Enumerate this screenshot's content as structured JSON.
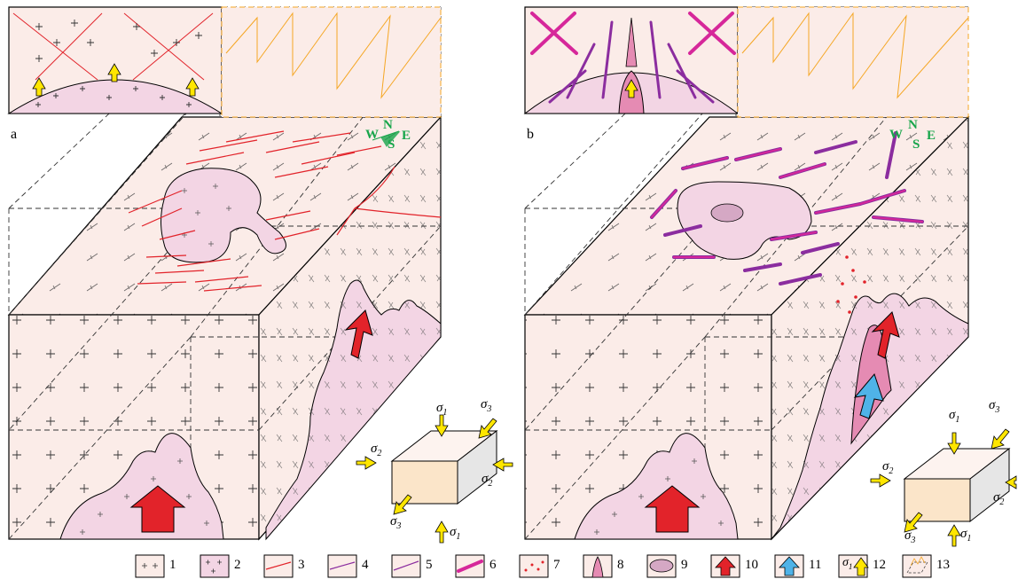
{
  "panels": [
    {
      "id": "a",
      "label": "a"
    },
    {
      "id": "b",
      "label": "b"
    }
  ],
  "compass": {
    "n": "N",
    "s": "S",
    "w": "W",
    "e": "E"
  },
  "stress": {
    "s1": "σ",
    "s1_sub": "1",
    "s2": "σ",
    "s2_sub": "2",
    "s3": "σ",
    "s3_sub": "3"
  },
  "legend": [
    {
      "num": "1",
      "icon": "granite-cross-icon"
    },
    {
      "num": "2",
      "icon": "intrusion-cross-icon"
    },
    {
      "num": "3",
      "icon": "red-fault-icon"
    },
    {
      "num": "4",
      "icon": "purple-fault-icon"
    },
    {
      "num": "5",
      "icon": "purple-line-icon"
    },
    {
      "num": "6",
      "icon": "magenta-vein-icon"
    },
    {
      "num": "7",
      "icon": "red-dots-icon"
    },
    {
      "num": "8",
      "icon": "pink-intrusion-icon"
    },
    {
      "num": "9",
      "icon": "breccia-ellipse-icon"
    },
    {
      "num": "10",
      "icon": "red-arrow-icon"
    },
    {
      "num": "11",
      "icon": "blue-arrow-icon"
    },
    {
      "num": "12",
      "icon": "yellow-arrow-icon",
      "text": "σ",
      "sub": "1"
    },
    {
      "num": "13",
      "icon": "block-icon"
    }
  ],
  "colors": {
    "host": "#fbece8",
    "intrusion": "#f3d5e4",
    "intrusion_dark": "#e58bb3",
    "fault_red": "#e2232a",
    "vein_purple": "#8b2d9f",
    "vein_magenta": "#d6279a",
    "arrow_red": "#e2232a",
    "arrow_blue": "#4fb3e8",
    "arrow_yellow": "#ffe600",
    "orange_line": "#f5a623",
    "compass_green": "#17a54a",
    "block_top": "#fdf3ef",
    "block_front": "#fbe5c9",
    "block_side": "#e6e6e6"
  }
}
